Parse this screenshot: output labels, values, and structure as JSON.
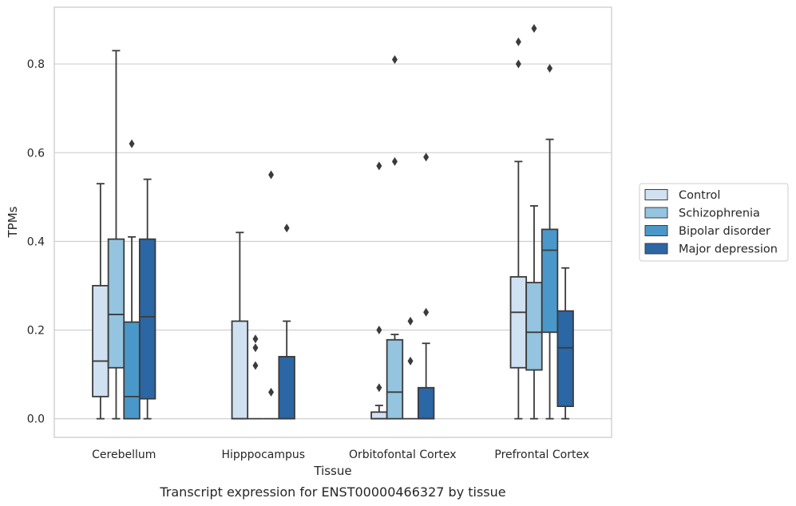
{
  "chart_data": {
    "type": "box",
    "title": "",
    "caption": "Transcript expression for ENST00000466327 by tissue",
    "xlabel": "Tissue",
    "ylabel": "TPMs",
    "ylim": [
      -0.042,
      0.928
    ],
    "yticks": [
      0.0,
      0.2,
      0.4,
      0.6,
      0.8
    ],
    "ytick_labels": [
      "0.0",
      "0.2",
      "0.4",
      "0.6",
      "0.8"
    ],
    "grid": "horizontal",
    "legend_position": "right",
    "categories": [
      "Cerebellum",
      "Hipppocampus",
      "Orbitofontal Cortex",
      "Prefrontal Cortex"
    ],
    "series": [
      {
        "name": "Control",
        "color": "#d0e1f2",
        "boxes": [
          {
            "whislo": 0.0,
            "q1": 0.05,
            "med": 0.13,
            "q3": 0.3,
            "whishi": 0.53,
            "fliers": []
          },
          {
            "whislo": 0.0,
            "q1": 0.0,
            "med": 0.0,
            "q3": 0.22,
            "whishi": 0.42,
            "fliers": []
          },
          {
            "whislo": 0.0,
            "q1": 0.0,
            "med": 0.0,
            "q3": 0.015,
            "whishi": 0.03,
            "fliers": [
              0.07,
              0.2,
              0.57
            ]
          },
          {
            "whislo": 0.0,
            "q1": 0.115,
            "med": 0.24,
            "q3": 0.32,
            "whishi": 0.58,
            "fliers": [
              0.8,
              0.85
            ]
          }
        ]
      },
      {
        "name": "Schizophrenia",
        "color": "#94c4df",
        "boxes": [
          {
            "whislo": 0.0,
            "q1": 0.115,
            "med": 0.235,
            "q3": 0.405,
            "whishi": 0.83,
            "fliers": []
          },
          {
            "whislo": 0.0,
            "q1": 0.0,
            "med": 0.0,
            "q3": 0.0,
            "whishi": 0.0,
            "fliers": [
              0.12,
              0.16,
              0.18
            ]
          },
          {
            "whislo": 0.0,
            "q1": 0.0,
            "med": 0.06,
            "q3": 0.178,
            "whishi": 0.19,
            "fliers": [
              0.58,
              0.81
            ]
          },
          {
            "whislo": 0.0,
            "q1": 0.11,
            "med": 0.195,
            "q3": 0.307,
            "whishi": 0.48,
            "fliers": [
              0.88
            ]
          }
        ]
      },
      {
        "name": "Bipolar disorder",
        "color": "#4a98c9",
        "boxes": [
          {
            "whislo": 0.0,
            "q1": 0.0,
            "med": 0.05,
            "q3": 0.218,
            "whishi": 0.41,
            "fliers": [
              0.62
            ]
          },
          {
            "whislo": 0.0,
            "q1": 0.0,
            "med": 0.0,
            "q3": 0.0,
            "whishi": 0.0,
            "fliers": [
              0.06,
              0.55
            ]
          },
          {
            "whislo": 0.0,
            "q1": 0.0,
            "med": 0.0,
            "q3": 0.0,
            "whishi": 0.0,
            "fliers": [
              0.13,
              0.22
            ]
          },
          {
            "whislo": 0.0,
            "q1": 0.195,
            "med": 0.38,
            "q3": 0.427,
            "whishi": 0.63,
            "fliers": [
              0.79
            ]
          }
        ]
      },
      {
        "name": "Major depression",
        "color": "#2b66a5",
        "boxes": [
          {
            "whislo": 0.0,
            "q1": 0.045,
            "med": 0.23,
            "q3": 0.405,
            "whishi": 0.54,
            "fliers": []
          },
          {
            "whislo": 0.0,
            "q1": 0.0,
            "med": 0.0,
            "q3": 0.14,
            "whishi": 0.22,
            "fliers": [
              0.43
            ]
          },
          {
            "whislo": 0.0,
            "q1": 0.0,
            "med": 0.0,
            "q3": 0.07,
            "whishi": 0.17,
            "fliers": [
              0.24,
              0.59
            ]
          },
          {
            "whislo": 0.0,
            "q1": 0.028,
            "med": 0.16,
            "q3": 0.243,
            "whishi": 0.34,
            "fliers": []
          }
        ]
      }
    ]
  }
}
